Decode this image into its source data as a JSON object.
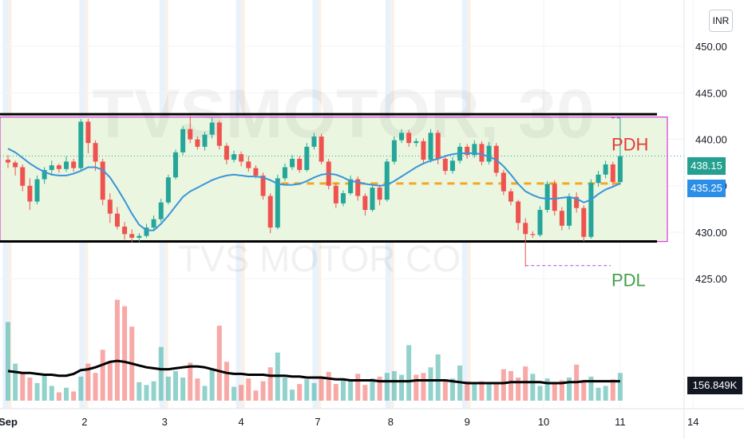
{
  "watermark": {
    "symbol_text": "TVSMOTOR, 30",
    "company_text": "TVS MOTOR CO"
  },
  "currency_label": "INR",
  "annotations": {
    "pdh": "PDH",
    "pdl": "PDL"
  },
  "badges": {
    "last_price": "438.15",
    "ma_price": "435.25",
    "volume": "156.849K"
  },
  "colors": {
    "up": "#26a69a",
    "down": "#ef5350",
    "ma": "#3a95d8",
    "range_box_border": "#d63bd6",
    "range_box_fill": "#eaf6e0",
    "pdh_label": "#e53935",
    "pdl_label": "#43a047",
    "dashed_level": "#f5a623",
    "session_stripe": "#e3effa"
  },
  "chart_data": {
    "type": "candlestick",
    "timeframe": "30m",
    "y_axis": {
      "ticks": [
        425.0,
        430.0,
        435.0,
        440.0,
        445.0,
        450.0
      ],
      "labels": [
        "425.00",
        "430.00",
        "435.00",
        "440.00",
        "445.00",
        "450.00"
      ],
      "range": [
        411,
        455
      ]
    },
    "x_axis": {
      "ticks": [
        0,
        10.5,
        21.5,
        32,
        42.5,
        52.5,
        63,
        73.5,
        84,
        94
      ],
      "labels": [
        "Sep",
        "2",
        "3",
        "4",
        "7",
        "8",
        "9",
        "10",
        "11",
        "14"
      ]
    },
    "sessions_start": [
      0,
      10.5,
      21.5,
      32,
      42.5,
      52.5,
      63
    ],
    "candles": [
      [
        437.8,
        438.3,
        436.9,
        437.5
      ],
      [
        437.5,
        437.7,
        436.1,
        437.0
      ],
      [
        437.0,
        437.3,
        434.4,
        435.0
      ],
      [
        435.0,
        435.8,
        432.4,
        433.3
      ],
      [
        433.3,
        436.1,
        433.0,
        435.7
      ],
      [
        435.7,
        437.0,
        435.2,
        436.7
      ],
      [
        436.7,
        437.7,
        436.1,
        437.2
      ],
      [
        437.2,
        437.4,
        436.4,
        436.8
      ],
      [
        436.8,
        438.2,
        436.5,
        437.6
      ],
      [
        437.6,
        437.9,
        436.5,
        436.9
      ],
      [
        436.9,
        442.2,
        436.7,
        441.9
      ],
      [
        441.9,
        442.2,
        438.5,
        439.6
      ],
      [
        439.6,
        439.9,
        436.6,
        437.6
      ],
      [
        437.6,
        437.9,
        432.9,
        433.5
      ],
      [
        433.5,
        434.2,
        431.0,
        432.0
      ],
      [
        432.0,
        432.7,
        430.3,
        430.6
      ],
      [
        430.6,
        431.1,
        429.2,
        429.8
      ],
      [
        429.8,
        430.3,
        428.9,
        429.4
      ],
      [
        429.4,
        429.9,
        428.9,
        429.6
      ],
      [
        429.6,
        430.9,
        429.4,
        430.5
      ],
      [
        430.5,
        431.8,
        430.2,
        431.4
      ],
      [
        431.4,
        433.6,
        431.1,
        433.2
      ],
      [
        433.2,
        436.2,
        433.0,
        435.9
      ],
      [
        435.9,
        438.9,
        435.7,
        438.6
      ],
      [
        438.6,
        441.4,
        438.3,
        441.1
      ],
      [
        441.1,
        442.5,
        439.6,
        440.0
      ],
      [
        440.0,
        440.3,
        438.9,
        439.2
      ],
      [
        439.2,
        440.8,
        438.8,
        440.5
      ],
      [
        440.5,
        442.3,
        440.1,
        441.8
      ],
      [
        441.8,
        442.0,
        438.9,
        439.3
      ],
      [
        439.3,
        439.6,
        437.3,
        437.8
      ],
      [
        437.8,
        438.8,
        437.5,
        438.4
      ],
      [
        438.4,
        438.7,
        437.1,
        437.6
      ],
      [
        437.6,
        438.2,
        436.5,
        436.9
      ],
      [
        436.9,
        437.2,
        435.8,
        436.1
      ],
      [
        436.1,
        436.4,
        433.5,
        433.9
      ],
      [
        433.9,
        434.2,
        429.9,
        430.5
      ],
      [
        430.5,
        436.2,
        430.3,
        435.8
      ],
      [
        435.8,
        437.4,
        435.5,
        437.0
      ],
      [
        437.0,
        438.3,
        436.7,
        437.9
      ],
      [
        437.9,
        438.2,
        436.4,
        436.7
      ],
      [
        436.7,
        439.6,
        436.5,
        439.2
      ],
      [
        439.2,
        440.7,
        438.9,
        440.3
      ],
      [
        440.3,
        440.6,
        437.3,
        437.6
      ],
      [
        437.6,
        437.9,
        434.6,
        435.0
      ],
      [
        435.0,
        435.3,
        432.6,
        433.1
      ],
      [
        433.1,
        434.5,
        432.8,
        434.2
      ],
      [
        434.2,
        436.1,
        434.0,
        435.7
      ],
      [
        435.7,
        436.0,
        433.4,
        433.9
      ],
      [
        433.9,
        434.2,
        431.8,
        432.4
      ],
      [
        432.4,
        435.1,
        432.2,
        434.8
      ],
      [
        434.8,
        435.1,
        432.9,
        433.5
      ],
      [
        433.5,
        437.9,
        433.3,
        437.6
      ],
      [
        437.6,
        440.3,
        437.3,
        439.9
      ],
      [
        439.9,
        441.1,
        439.6,
        440.7
      ],
      [
        440.7,
        441.0,
        439.2,
        439.6
      ],
      [
        439.6,
        440.1,
        439.2,
        439.8
      ],
      [
        439.8,
        440.1,
        437.4,
        437.8
      ],
      [
        437.8,
        441.1,
        437.5,
        440.7
      ],
      [
        440.7,
        441.0,
        437.3,
        437.9
      ],
      [
        437.9,
        438.2,
        436.2,
        436.6
      ],
      [
        436.6,
        438.1,
        436.3,
        437.7
      ],
      [
        437.7,
        439.6,
        437.4,
        439.2
      ],
      [
        439.2,
        439.5,
        437.9,
        438.3
      ],
      [
        438.3,
        439.9,
        438.0,
        439.5
      ],
      [
        439.5,
        439.8,
        437.2,
        437.6
      ],
      [
        437.6,
        439.7,
        437.3,
        439.3
      ],
      [
        439.3,
        439.6,
        436.0,
        436.4
      ],
      [
        436.4,
        436.7,
        434.0,
        434.4
      ],
      [
        434.4,
        434.7,
        432.9,
        433.3
      ],
      [
        433.3,
        433.5,
        430.2,
        431.0
      ],
      [
        431.0,
        431.5,
        426.3,
        429.8
      ],
      [
        429.8,
        430.1,
        429.4,
        429.7
      ],
      [
        429.7,
        432.8,
        429.5,
        432.4
      ],
      [
        432.4,
        435.5,
        432.1,
        435.2
      ],
      [
        435.2,
        435.6,
        431.8,
        432.3
      ],
      [
        432.3,
        432.7,
        430.2,
        430.7
      ],
      [
        430.7,
        434.2,
        430.3,
        433.8
      ],
      [
        433.8,
        434.3,
        432.1,
        432.6
      ],
      [
        432.6,
        432.9,
        429.0,
        429.5
      ],
      [
        429.5,
        435.7,
        429.3,
        435.3
      ],
      [
        435.3,
        436.6,
        434.9,
        436.2
      ],
      [
        436.2,
        437.7,
        435.8,
        437.3
      ],
      [
        437.3,
        437.6,
        435.0,
        435.4
      ],
      [
        435.4,
        442.3,
        435.1,
        438.2
      ]
    ],
    "volume": [
      {
        "v": 8.5,
        "up": true
      },
      {
        "v": 4.0,
        "up": true
      },
      {
        "v": 3.1,
        "up": false
      },
      {
        "v": 2.5,
        "up": false
      },
      {
        "v": 1.9,
        "up": true
      },
      {
        "v": 2.9,
        "up": true
      },
      {
        "v": 1.6,
        "up": true
      },
      {
        "v": 0.9,
        "up": false
      },
      {
        "v": 1.4,
        "up": true
      },
      {
        "v": 1.0,
        "up": false
      },
      {
        "v": 2.6,
        "up": true
      },
      {
        "v": 4.0,
        "up": false
      },
      {
        "v": 3.0,
        "up": false
      },
      {
        "v": 5.5,
        "up": false
      },
      {
        "v": 4.1,
        "up": false
      },
      {
        "v": 10.9,
        "up": false
      },
      {
        "v": 10.2,
        "up": false
      },
      {
        "v": 8.0,
        "up": false
      },
      {
        "v": 2.0,
        "up": true
      },
      {
        "v": 1.7,
        "up": true
      },
      {
        "v": 2.1,
        "up": true
      },
      {
        "v": 5.8,
        "up": true
      },
      {
        "v": 2.6,
        "up": true
      },
      {
        "v": 3.2,
        "up": true
      },
      {
        "v": 2.5,
        "up": true
      },
      {
        "v": 4.1,
        "up": false
      },
      {
        "v": 2.4,
        "up": false
      },
      {
        "v": 1.6,
        "up": true
      },
      {
        "v": 3.4,
        "up": true
      },
      {
        "v": 8.1,
        "up": false
      },
      {
        "v": 4.2,
        "up": false
      },
      {
        "v": 1.5,
        "up": true
      },
      {
        "v": 1.7,
        "up": false
      },
      {
        "v": 2.4,
        "up": false
      },
      {
        "v": 1.1,
        "up": false
      },
      {
        "v": 2.1,
        "up": false
      },
      {
        "v": 3.6,
        "up": false
      },
      {
        "v": 5.2,
        "up": true
      },
      {
        "v": 2.5,
        "up": true
      },
      {
        "v": 1.2,
        "up": true
      },
      {
        "v": 1.8,
        "up": false
      },
      {
        "v": 2.3,
        "up": true
      },
      {
        "v": 1.9,
        "up": true
      },
      {
        "v": 2.6,
        "up": false
      },
      {
        "v": 3.1,
        "up": false
      },
      {
        "v": 1.8,
        "up": false
      },
      {
        "v": 2.2,
        "up": true
      },
      {
        "v": 2.1,
        "up": true
      },
      {
        "v": 2.9,
        "up": false
      },
      {
        "v": 1.7,
        "up": false
      },
      {
        "v": 2.4,
        "up": true
      },
      {
        "v": 2.6,
        "up": false
      },
      {
        "v": 3.0,
        "up": true
      },
      {
        "v": 3.2,
        "up": true
      },
      {
        "v": 2.8,
        "up": true
      },
      {
        "v": 6.0,
        "up": true
      },
      {
        "v": 2.8,
        "up": false
      },
      {
        "v": 3.0,
        "up": false
      },
      {
        "v": 3.6,
        "up": true
      },
      {
        "v": 5.0,
        "up": true
      },
      {
        "v": 2.3,
        "up": false
      },
      {
        "v": 2.4,
        "up": true
      },
      {
        "v": 3.8,
        "up": true
      },
      {
        "v": 2.1,
        "up": false
      },
      {
        "v": 1.8,
        "up": true
      },
      {
        "v": 2.1,
        "up": false
      },
      {
        "v": 1.9,
        "up": true
      },
      {
        "v": 1.8,
        "up": false
      },
      {
        "v": 3.4,
        "up": false
      },
      {
        "v": 3.2,
        "up": false
      },
      {
        "v": 2.5,
        "up": false
      },
      {
        "v": 3.7,
        "up": false
      },
      {
        "v": 2.9,
        "up": true
      },
      {
        "v": 1.6,
        "up": true
      },
      {
        "v": 2.4,
        "up": true
      },
      {
        "v": 1.8,
        "up": false
      },
      {
        "v": 2.2,
        "up": false
      },
      {
        "v": 2.5,
        "up": true
      },
      {
        "v": 3.9,
        "up": false
      },
      {
        "v": 2.2,
        "up": false
      },
      {
        "v": 2.6,
        "up": true
      },
      {
        "v": 1.4,
        "up": true
      },
      {
        "v": 1.6,
        "up": true
      },
      {
        "v": 2.3,
        "up": false
      },
      {
        "v": 3.0,
        "up": true
      }
    ],
    "volume_ma": [
      3.2,
      3.1,
      3.0,
      3.0,
      2.9,
      2.8,
      2.8,
      2.7,
      2.7,
      2.9,
      3.3,
      3.4,
      3.6,
      3.9,
      4.2,
      4.3,
      4.2,
      4.0,
      3.8,
      3.6,
      3.5,
      3.4,
      3.4,
      3.5,
      3.6,
      3.7,
      3.7,
      3.6,
      3.4,
      3.2,
      3.0,
      2.9,
      2.9,
      2.8,
      2.8,
      2.8,
      2.7,
      2.7,
      2.7,
      2.6,
      2.6,
      2.5,
      2.5,
      2.5,
      2.4,
      2.3,
      2.3,
      2.2,
      2.2,
      2.2,
      2.2,
      2.1,
      2.1,
      2.1,
      2.1,
      2.1,
      2.2,
      2.2,
      2.2,
      2.2,
      2.2,
      2.1,
      2.0,
      1.9,
      1.9,
      1.9,
      1.9,
      1.9,
      1.9,
      2.0,
      2.0,
      2.0,
      2.0,
      2.0,
      1.9,
      1.9,
      1.9,
      2.0,
      2.0,
      2.1,
      2.1,
      2.1,
      2.1,
      2.1,
      2.1
    ],
    "moving_average": {
      "values": [
        439.0,
        438.6,
        438.0,
        437.4,
        436.9,
        436.5,
        436.2,
        436.1,
        436.1,
        436.3,
        436.6,
        437.0,
        437.0,
        436.7,
        435.9,
        434.7,
        433.4,
        432.0,
        430.8,
        430.2,
        430.2,
        430.9,
        431.8,
        432.8,
        433.8,
        434.4,
        434.8,
        435.2,
        435.6,
        435.9,
        436.1,
        436.2,
        436.1,
        436.0,
        436.0,
        435.9,
        435.6,
        435.2,
        435.1,
        435.1,
        435.2,
        435.5,
        435.9,
        436.2,
        436.3,
        436.2,
        435.9,
        435.5,
        435.4,
        435.2,
        435.1,
        435.0,
        435.1,
        435.5,
        436.0,
        436.5,
        437.0,
        437.4,
        437.7,
        437.9,
        438.2,
        438.4,
        438.5,
        438.5,
        438.5,
        438.4,
        438.1,
        437.8,
        437.1,
        436.2,
        435.2,
        434.4,
        434.0,
        433.7,
        433.6,
        433.6,
        433.7,
        433.8,
        433.6,
        433.2,
        433.5,
        434.1,
        434.6,
        434.9,
        435.25
      ]
    },
    "levels": {
      "range_box": {
        "top": 442.4,
        "bottom": 429.0
      },
      "black_lines": [
        442.7,
        429.0
      ],
      "dashed_mid": 435.25,
      "pdh_level": 442.3,
      "pdl_level": 426.4
    },
    "legend": []
  }
}
